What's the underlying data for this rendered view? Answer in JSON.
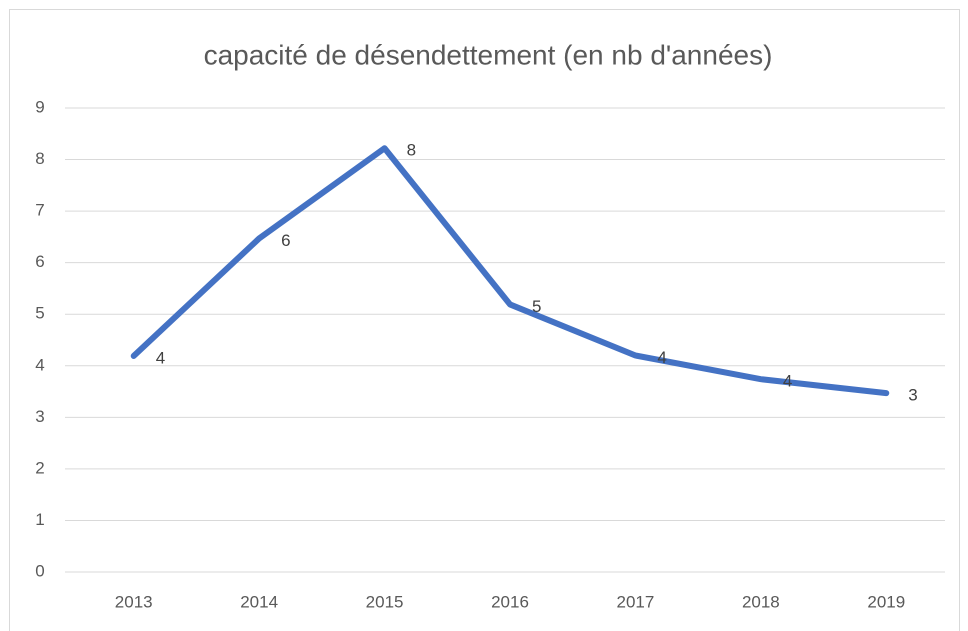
{
  "chart_data": {
    "type": "line",
    "title": "capacité de désendettement (en nb d'années)",
    "categories": [
      "2013",
      "2014",
      "2015",
      "2016",
      "2017",
      "2018",
      "2019"
    ],
    "series": [
      {
        "name": "capacité de désendettement",
        "color": "#4472c4",
        "values": [
          4.19,
          6.47,
          8.22,
          5.19,
          4.2,
          3.74,
          3.47
        ],
        "value_labels": [
          "4",
          "6",
          "8",
          "5",
          "4",
          "4",
          "3"
        ]
      }
    ],
    "ylim": [
      0,
      9
    ],
    "yticks": [
      0,
      1,
      2,
      3,
      4,
      5,
      6,
      7,
      8,
      9
    ],
    "grid": true
  }
}
